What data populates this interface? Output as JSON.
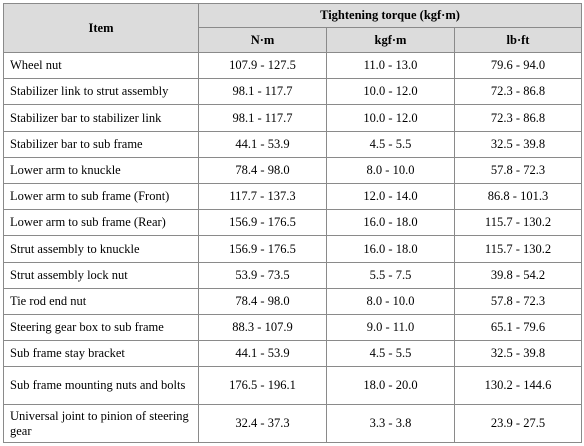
{
  "table": {
    "header": {
      "item": "Item",
      "group": "Tightening torque (kgf·m)",
      "units": [
        "N·m",
        "kgf·m",
        "lb·ft"
      ]
    },
    "rows": [
      {
        "item": "Wheel nut",
        "nm": "107.9 - 127.5",
        "kgfm": "11.0 - 13.0",
        "lbft": "79.6 - 94.0"
      },
      {
        "item": "Stabilizer link to strut assembly",
        "nm": "98.1 - 117.7",
        "kgfm": "10.0 - 12.0",
        "lbft": "72.3 - 86.8"
      },
      {
        "item": "Stabilizer bar to stabilizer link",
        "nm": "98.1 - 117.7",
        "kgfm": "10.0 - 12.0",
        "lbft": "72.3 - 86.8"
      },
      {
        "item": "Stabilizer bar to sub frame",
        "nm": "44.1 - 53.9",
        "kgfm": "4.5 - 5.5",
        "lbft": "32.5 - 39.8"
      },
      {
        "item": "Lower arm to knuckle",
        "nm": "78.4 - 98.0",
        "kgfm": "8.0 - 10.0",
        "lbft": "57.8 - 72.3"
      },
      {
        "item": "Lower arm to sub frame (Front)",
        "nm": "117.7 - 137.3",
        "kgfm": "12.0 - 14.0",
        "lbft": "86.8 - 101.3"
      },
      {
        "item": "Lower arm to sub frame (Rear)",
        "nm": "156.9 - 176.5",
        "kgfm": "16.0 - 18.0",
        "lbft": "115.7 - 130.2"
      },
      {
        "item": "Strut assembly to knuckle",
        "nm": "156.9 - 176.5",
        "kgfm": "16.0 - 18.0",
        "lbft": "115.7 - 130.2"
      },
      {
        "item": "Strut assembly lock nut",
        "nm": "53.9 - 73.5",
        "kgfm": "5.5 - 7.5",
        "lbft": "39.8 - 54.2"
      },
      {
        "item": "Tie rod end nut",
        "nm": "78.4 - 98.0",
        "kgfm": "8.0 - 10.0",
        "lbft": "57.8 - 72.3"
      },
      {
        "item": "Steering gear box to sub frame",
        "nm": "88.3 - 107.9",
        "kgfm": "9.0 - 11.0",
        "lbft": "65.1 - 79.6"
      },
      {
        "item": "Sub frame stay bracket",
        "nm": "44.1 - 53.9",
        "kgfm": "4.5 - 5.5",
        "lbft": "32.5 - 39.8"
      },
      {
        "item": "Sub frame mounting nuts and bolts",
        "nm": "176.5 - 196.1",
        "kgfm": "18.0 - 20.0",
        "lbft": "130.2 - 144.6"
      },
      {
        "item": "Universal joint to pinion of steering gear",
        "nm": "32.4 - 37.3",
        "kgfm": "3.3 - 3.8",
        "lbft": "23.9 - 27.5"
      }
    ]
  }
}
